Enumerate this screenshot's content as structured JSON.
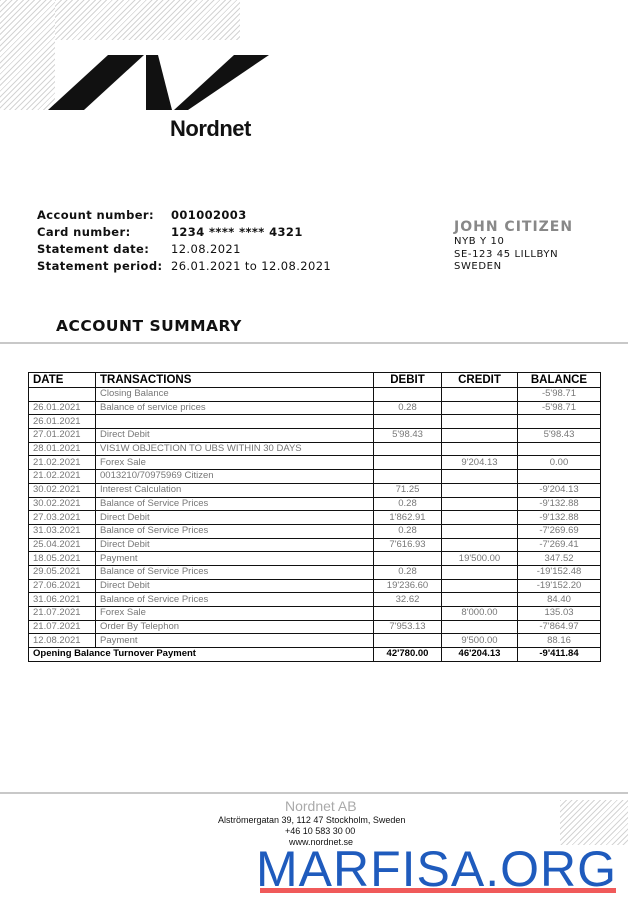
{
  "brand": {
    "name": "Nordnet",
    "logo_color": "#111111"
  },
  "account": {
    "labels": {
      "account_number": "Account number:",
      "card_number": "Card number:",
      "statement_date": "Statement date:",
      "statement_period": "Statement period:"
    },
    "account_number": "001002003",
    "card_number": "1234 **** **** 4321",
    "statement_date": "12.08.2021",
    "statement_period": "26.01.2021 to 12.08.2021"
  },
  "recipient": {
    "name": "JOHN CITIZEN",
    "line1": "NYB Y 10",
    "line2": "SE-123 45 LILLBYN",
    "line3": "SWEDEN"
  },
  "summary_title": "ACCOUNT SUMMARY",
  "table": {
    "headers": [
      "DATE",
      "TRANSACTIONS",
      "DEBIT",
      "CREDIT",
      "BALANCE"
    ],
    "rows": [
      [
        "",
        "Closing Balance",
        "",
        "",
        "-5'98.71"
      ],
      [
        "26.01.2021",
        "Balance of service prices",
        "0.28",
        "",
        "-5'98.71"
      ],
      [
        "26.01.2021",
        "",
        "",
        "",
        ""
      ],
      [
        "27.01.2021",
        "Direct Debit",
        "5'98.43",
        "",
        "5'98.43"
      ],
      [
        "28.01.2021",
        "VIS1W OBJECTION TO UBS WITHIN 30 DAYS",
        "",
        "",
        ""
      ],
      [
        "21.02.2021",
        "Forex Sale",
        "",
        "9'204.13",
        "0.00"
      ],
      [
        "21.02.2021",
        "0013210/70975969 Citizen",
        "",
        "",
        ""
      ],
      [
        "30.02.2021",
        "Interest Calculation",
        "71.25",
        "",
        "-9'204.13"
      ],
      [
        "30.02.2021",
        "Balance of Service Prices",
        "0.28",
        "",
        "-9'132.88"
      ],
      [
        "27.03.2021",
        "Direct Debit",
        "1'862.91",
        "",
        "-9'132.88"
      ],
      [
        "31.03.2021",
        "Balance of Service Prices",
        "0.28",
        "",
        "-7'269.69"
      ],
      [
        "25.04.2021",
        "Direct Debit",
        "7'616.93",
        "",
        "-7'269.41"
      ],
      [
        "18.05.2021",
        "Payment",
        "",
        "19'500.00",
        "347.52"
      ],
      [
        "29.05.2021",
        "Balance of Service Prices",
        "0.28",
        "",
        "-19'152.48"
      ],
      [
        "27.06.2021",
        "Direct Debit",
        "19'236.60",
        "",
        "-19'152.20"
      ],
      [
        "31.06.2021",
        "Balance of Service Prices",
        "32.62",
        "",
        "84.40"
      ],
      [
        "21.07.2021",
        "Forex Sale",
        "",
        "8'000.00",
        "135.03"
      ],
      [
        "21.07.2021",
        "Order By Telephon",
        "7'953.13",
        "",
        "-7'864.97"
      ],
      [
        "12.08.2021",
        "Payment",
        "",
        "9'500.00",
        "88.16"
      ]
    ],
    "total": {
      "label": "Opening Balance Turnover Payment",
      "debit": "42'780.00",
      "credit": "46'204.13",
      "balance": "-9'411.84"
    }
  },
  "footer": {
    "company": "Nordnet AB",
    "address": "Alströmergatan 39, 112 47 Stockholm, Sweden",
    "phone": "+46 10 583 30 00",
    "website": "www.nordnet.se"
  },
  "watermark": {
    "text": "MARFISA.ORG",
    "color": "#1f5bbd",
    "underline_color": "#f05a5a"
  }
}
